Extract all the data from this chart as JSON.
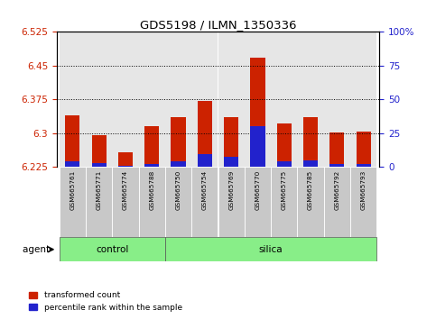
{
  "title": "GDS5198 / ILMN_1350336",
  "samples": [
    "GSM665761",
    "GSM665771",
    "GSM665774",
    "GSM665788",
    "GSM665750",
    "GSM665754",
    "GSM665769",
    "GSM665770",
    "GSM665775",
    "GSM665785",
    "GSM665792",
    "GSM665793"
  ],
  "transformed_counts": [
    6.34,
    6.295,
    6.257,
    6.315,
    6.335,
    6.372,
    6.335,
    6.468,
    6.322,
    6.335,
    6.302,
    6.303
  ],
  "percentile_values": [
    6.237,
    6.233,
    6.228,
    6.232,
    6.237,
    6.253,
    6.248,
    6.315,
    6.237,
    6.24,
    6.231,
    6.231
  ],
  "ymin": 6.225,
  "ymax": 6.525,
  "yticks_left": [
    6.225,
    6.3,
    6.375,
    6.45,
    6.525
  ],
  "yticks_right_pct": [
    0,
    25,
    50,
    75,
    100
  ],
  "bar_width": 0.55,
  "red_color": "#CC2200",
  "blue_color": "#2222CC",
  "sample_bg_color": "#C8C8C8",
  "group_fill_color": "#88EE88",
  "legend_red": "transformed count",
  "legend_blue": "percentile rank within the sample",
  "agent_label": "agent",
  "control_indices": [
    0,
    3
  ],
  "silica_indices": [
    4,
    11
  ]
}
